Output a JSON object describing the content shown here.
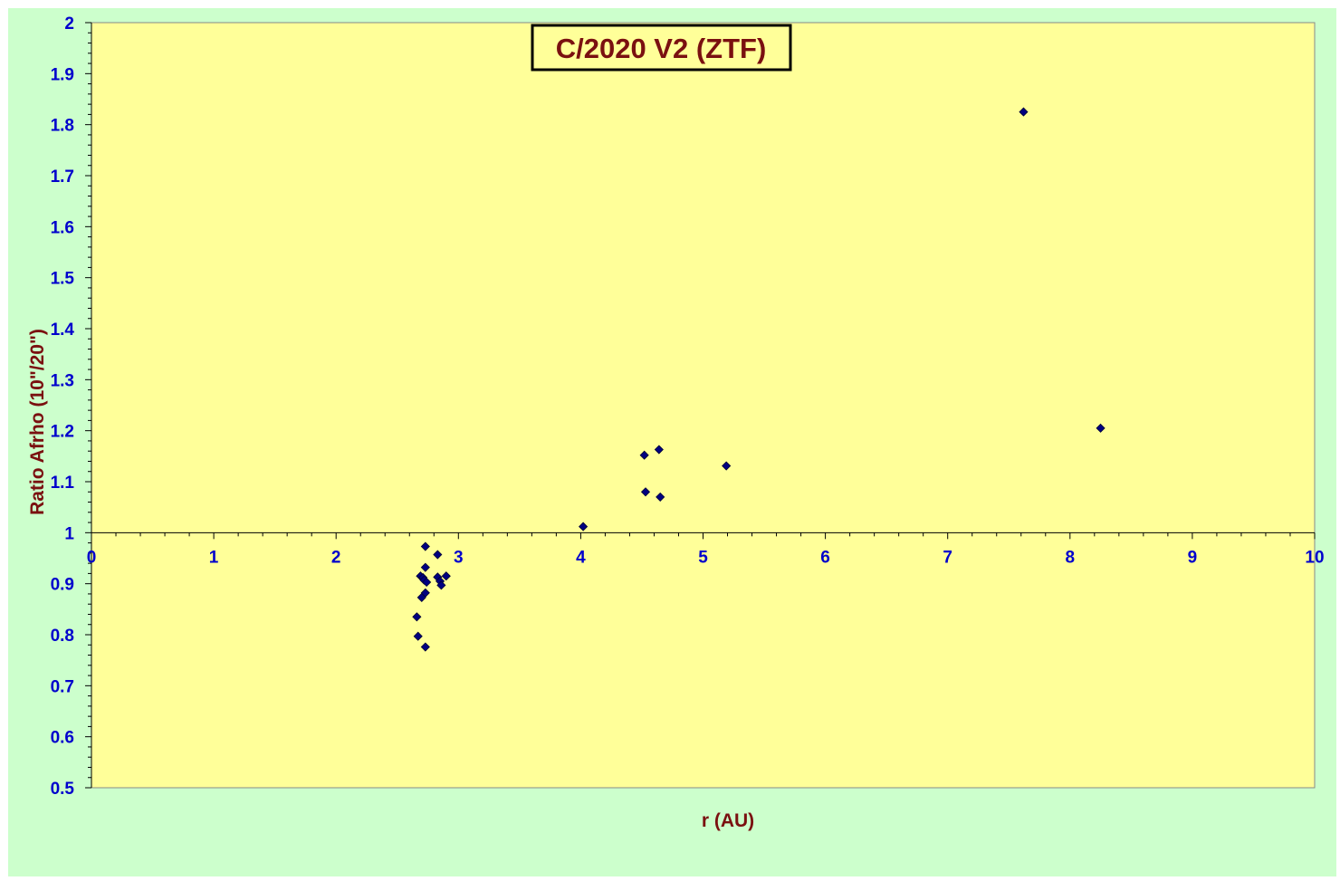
{
  "chart_data": {
    "type": "scatter",
    "title": "C/2020 V2 (ZTF)",
    "xlabel": "r (AU)",
    "ylabel": "Ratio Afrho (10\"/20\")",
    "xlim": [
      0,
      10
    ],
    "ylim": [
      0.5,
      2
    ],
    "xticks": [
      "0",
      "1",
      "2",
      "3",
      "4",
      "5",
      "6",
      "7",
      "8",
      "9",
      "10"
    ],
    "yticks": [
      "0.5",
      "0.6",
      "0.7",
      "0.8",
      "0.9",
      "1",
      "1.1",
      "1.2",
      "1.3",
      "1.4",
      "1.5",
      "1.6",
      "1.7",
      "1.8",
      "1.9",
      "2"
    ],
    "x_axis_crosses_at": 1,
    "grid": false,
    "legend": "none",
    "colors": {
      "outer_background": "#ccffcc",
      "plot_background": "#ffff99",
      "marker": "#000080",
      "tick_labels": "#0000cc",
      "titles": "#7a1010"
    },
    "points": [
      {
        "x": 2.66,
        "y": 0.835
      },
      {
        "x": 2.67,
        "y": 0.797
      },
      {
        "x": 2.69,
        "y": 0.915
      },
      {
        "x": 2.7,
        "y": 0.873
      },
      {
        "x": 2.71,
        "y": 0.912
      },
      {
        "x": 2.72,
        "y": 0.907
      },
      {
        "x": 2.73,
        "y": 0.776
      },
      {
        "x": 2.73,
        "y": 0.882
      },
      {
        "x": 2.73,
        "y": 0.932
      },
      {
        "x": 2.73,
        "y": 0.973
      },
      {
        "x": 2.74,
        "y": 0.903
      },
      {
        "x": 2.83,
        "y": 0.957
      },
      {
        "x": 2.83,
        "y": 0.913
      },
      {
        "x": 2.85,
        "y": 0.905
      },
      {
        "x": 2.86,
        "y": 0.897
      },
      {
        "x": 2.9,
        "y": 0.915
      },
      {
        "x": 4.02,
        "y": 1.012
      },
      {
        "x": 4.52,
        "y": 1.152
      },
      {
        "x": 4.53,
        "y": 1.08
      },
      {
        "x": 4.64,
        "y": 1.163
      },
      {
        "x": 4.65,
        "y": 1.07
      },
      {
        "x": 5.19,
        "y": 1.131
      },
      {
        "x": 7.62,
        "y": 1.825
      },
      {
        "x": 8.25,
        "y": 1.205
      }
    ]
  }
}
